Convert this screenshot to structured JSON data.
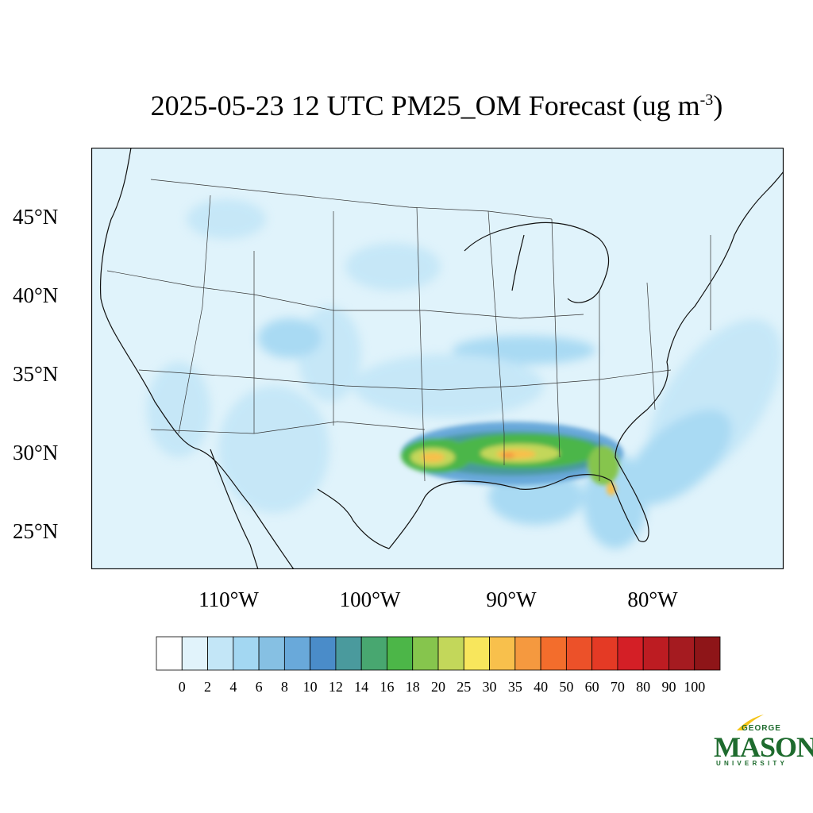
{
  "title": {
    "main": "2025-05-23 12 UTC PM25_OM Forecast (ug m",
    "superscript": "-3",
    "close": ")"
  },
  "map": {
    "latitude_labels": [
      "45°N",
      "40°N",
      "35°N",
      "30°N",
      "25°N"
    ],
    "longitude_labels": [
      "110°W",
      "100°W",
      "90°W",
      "80°W"
    ],
    "background_color": "#e0f3fb"
  },
  "colorbar": {
    "labels": [
      "0",
      "2",
      "4",
      "6",
      "8",
      "10",
      "12",
      "14",
      "16",
      "18",
      "20",
      "25",
      "30",
      "35",
      "40",
      "50",
      "60",
      "70",
      "80",
      "90",
      "100"
    ],
    "colors": [
      "#ffffff",
      "#e1f3fb",
      "#c3e6f7",
      "#a3d7f2",
      "#86c0e3",
      "#69a9da",
      "#4a8cc9",
      "#4a9a9d",
      "#48a770",
      "#4cb648",
      "#86c54d",
      "#c3d75a",
      "#f8e65c",
      "#f8c04c",
      "#f5993f",
      "#f36d2c",
      "#ec5129",
      "#e43a25",
      "#d41f26",
      "#bd1c22",
      "#a51b20",
      "#8e1518"
    ]
  },
  "logo": {
    "line1": "GEORGE",
    "line2": "MASON",
    "line3": "UNIVERSITY",
    "color": "#1e6b2e",
    "accent": "#f5c518"
  }
}
